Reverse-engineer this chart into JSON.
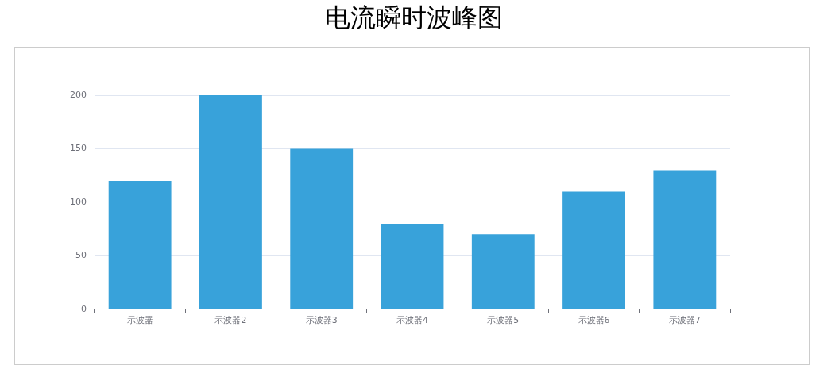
{
  "chart_data": {
    "type": "bar",
    "title": "电流瞬时波峰图",
    "categories": [
      "示波器",
      "示波器2",
      "示波器3",
      "示波器4",
      "示波器5",
      "示波器6",
      "示波器7"
    ],
    "values": [
      120,
      200,
      150,
      80,
      70,
      110,
      130
    ],
    "color": "#38a2da",
    "ylim": [
      0,
      200
    ],
    "yticks": [
      0,
      50,
      100,
      150,
      200
    ],
    "grid": "y"
  }
}
